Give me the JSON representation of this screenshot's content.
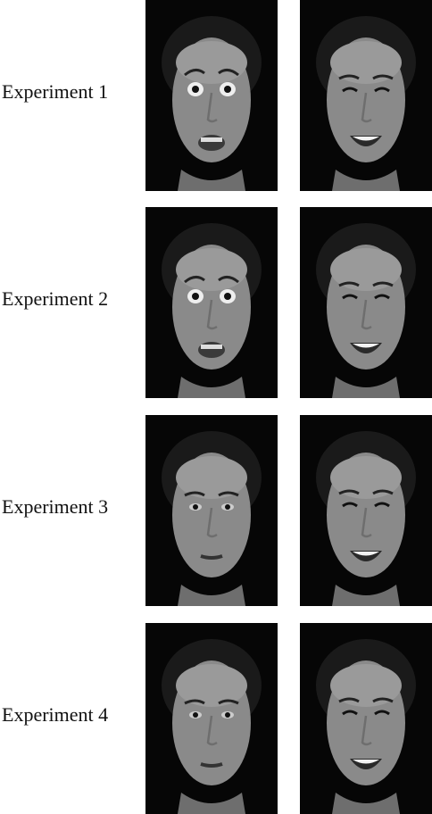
{
  "rows": [
    {
      "label": "Experiment 1",
      "left_expression": "fear",
      "right_expression": "happy"
    },
    {
      "label": "Experiment 2",
      "left_expression": "fear",
      "right_expression": "happy"
    },
    {
      "label": "Experiment 3",
      "left_expression": "neutral",
      "right_expression": "happy"
    },
    {
      "label": "Experiment 4",
      "left_expression": "neutral",
      "right_expression": "happy"
    }
  ]
}
